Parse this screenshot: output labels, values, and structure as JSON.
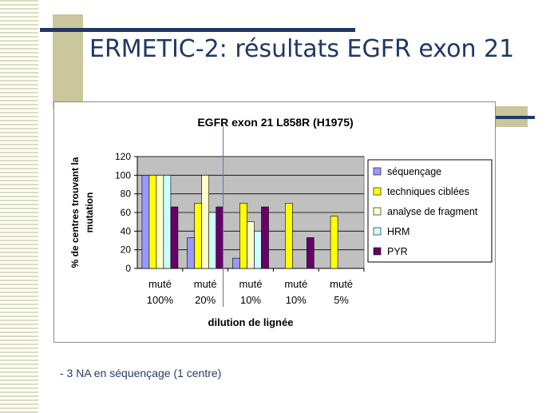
{
  "slide": {
    "title": "ERMETIC-2: résultats EGFR exon 21",
    "note": "- 3 NA en séquençage (1 centre)"
  },
  "colors": {
    "title": "#1f3864",
    "decor_line": "#1f3864",
    "decor_block": "#c9c79b",
    "plot_bg": "#c0c0c0"
  },
  "chart_data": {
    "type": "bar",
    "title": "EGFR exon 21 L858R (H1975)",
    "xlabel": "dilution de lignée",
    "ylabel": [
      "% de centres trouvant la",
      "mutation"
    ],
    "ylim": [
      0,
      120
    ],
    "yticks": [
      0,
      20,
      40,
      60,
      80,
      100,
      120
    ],
    "grid": true,
    "legend_position": "right",
    "categories": [
      [
        "muté",
        "100%"
      ],
      [
        "muté",
        "20%"
      ],
      [
        "muté",
        "10%"
      ],
      [
        "muté",
        "10%"
      ],
      [
        "muté",
        "5%"
      ]
    ],
    "series": [
      {
        "name": "séquençage",
        "color": "#9999ff",
        "values": [
          100,
          33,
          11,
          null,
          null
        ]
      },
      {
        "name": "techniques ciblées",
        "color": "#ffff00",
        "values": [
          100,
          70,
          70,
          70,
          56
        ]
      },
      {
        "name": "analyse de fragment",
        "color": "#ffffcc",
        "values": [
          100,
          100,
          50,
          null,
          null
        ]
      },
      {
        "name": "HRM",
        "color": "#ccffff",
        "values": [
          100,
          60,
          40,
          null,
          null
        ]
      },
      {
        "name": "PYR",
        "color": "#660066",
        "values": [
          66,
          66,
          66,
          33,
          null
        ]
      }
    ]
  }
}
